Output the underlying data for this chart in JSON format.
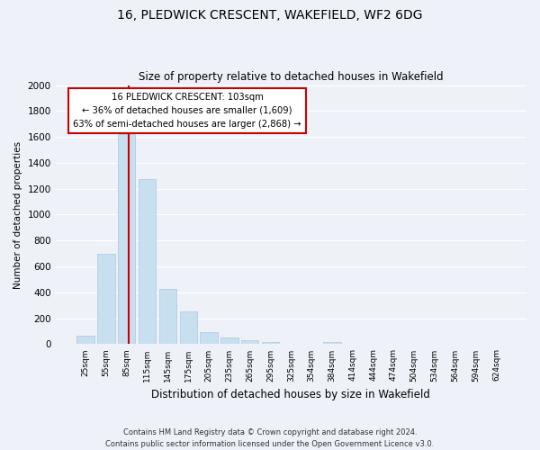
{
  "title": "16, PLEDWICK CRESCENT, WAKEFIELD, WF2 6DG",
  "subtitle": "Size of property relative to detached houses in Wakefield",
  "xlabel": "Distribution of detached houses by size in Wakefield",
  "ylabel": "Number of detached properties",
  "bar_labels": [
    "25sqm",
    "55sqm",
    "85sqm",
    "115sqm",
    "145sqm",
    "175sqm",
    "205sqm",
    "235sqm",
    "265sqm",
    "295sqm",
    "325sqm",
    "354sqm",
    "384sqm",
    "414sqm",
    "444sqm",
    "474sqm",
    "504sqm",
    "534sqm",
    "564sqm",
    "594sqm",
    "624sqm"
  ],
  "bar_values": [
    65,
    695,
    1625,
    1275,
    430,
    250,
    90,
    50,
    30,
    20,
    0,
    0,
    15,
    0,
    0,
    0,
    0,
    0,
    0,
    0,
    0
  ],
  "bar_color": "#c8dff0",
  "bar_edge_color": "#aac8e0",
  "property_label": "16 PLEDWICK CRESCENT: 103sqm",
  "annotation_line1": "← 36% of detached houses are smaller (1,609)",
  "annotation_line2": "63% of semi-detached houses are larger (2,868) →",
  "vline_color": "#cc0000",
  "annotation_box_color": "#ffffff",
  "annotation_box_edge": "#cc0000",
  "ylim": [
    0,
    2000
  ],
  "yticks": [
    0,
    200,
    400,
    600,
    800,
    1000,
    1200,
    1400,
    1600,
    1800,
    2000
  ],
  "footer_line1": "Contains HM Land Registry data © Crown copyright and database right 2024.",
  "footer_line2": "Contains public sector information licensed under the Open Government Licence v3.0.",
  "background_color": "#eef2f8"
}
